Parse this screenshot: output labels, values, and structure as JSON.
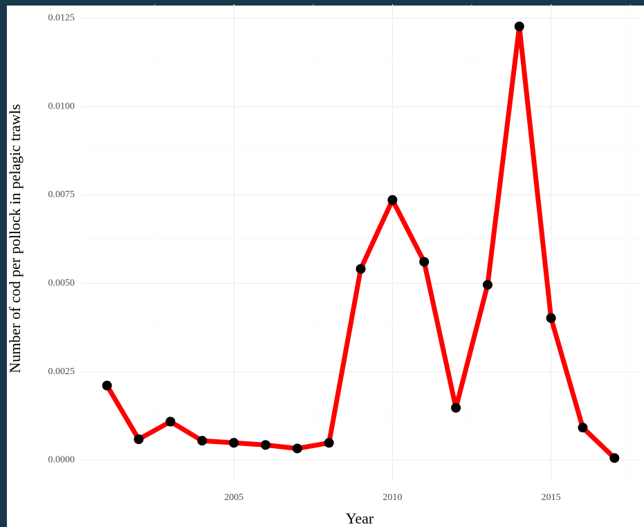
{
  "chart_data": {
    "type": "line",
    "x_label": "Year",
    "y_label": "Number of cod per pollock in pelagic trawls",
    "x": [
      2001,
      2002,
      2003,
      2004,
      2005,
      2006,
      2007,
      2008,
      2009,
      2010,
      2011,
      2012,
      2013,
      2014,
      2015,
      2016,
      2017
    ],
    "series": [
      {
        "color": "#ff0000",
        "marker_color": "#000000",
        "values": [
          0.00211,
          0.00059,
          0.00109,
          0.00055,
          0.00049,
          0.00043,
          0.00033,
          0.00049,
          0.00541,
          0.00736,
          0.00561,
          0.00148,
          0.00496,
          0.01227,
          0.00402,
          0.00092,
          6e-05
        ]
      }
    ],
    "xlim": [
      2000.2,
      2017.8
    ],
    "xticks": [
      2005,
      2010,
      2015
    ],
    "ylim": [
      -0.0006,
      0.0129
    ],
    "yticks": [
      {
        "value": 0,
        "label": "0.0000"
      },
      {
        "value": 0.0025,
        "label": "0.0025"
      },
      {
        "value": 0.005,
        "label": "0.0050"
      },
      {
        "value": 0.0075,
        "label": "0.0075"
      },
      {
        "value": 0.01,
        "label": "0.0100"
      },
      {
        "value": 0.0125,
        "label": "0.0125"
      }
    ],
    "grid": true
  }
}
